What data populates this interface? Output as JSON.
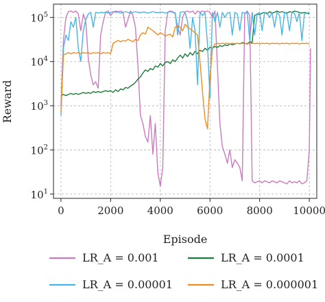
{
  "chart_data": {
    "type": "line",
    "xlabel": "Episode",
    "ylabel": "Reward",
    "yscale": "log",
    "xlim": [
      -300,
      10300
    ],
    "ylim": [
      8,
      200000
    ],
    "grid": true,
    "legend_position": "bottom",
    "x_ticks": [
      0,
      2000,
      4000,
      6000,
      8000,
      10000
    ],
    "x_tick_labels": [
      "0",
      "2000",
      "4000",
      "6000",
      "8000",
      "10000"
    ],
    "y_ticks": [
      10,
      100,
      1000,
      10000,
      100000
    ],
    "y_tick_labels": [
      {
        "base": "10",
        "exp": "1"
      },
      {
        "base": "10",
        "exp": "2"
      },
      {
        "base": "10",
        "exp": "3"
      },
      {
        "base": "10",
        "exp": "4"
      },
      {
        "base": "10",
        "exp": "5"
      }
    ],
    "series": [
      {
        "name": "LR_A = 0.001",
        "color": "#cc79c0",
        "x": [
          0,
          100,
          200,
          300,
          400,
          500,
          600,
          700,
          800,
          900,
          1000,
          1100,
          1200,
          1300,
          1400,
          1500,
          1600,
          1700,
          1800,
          1900,
          2000,
          2100,
          2200,
          2300,
          2400,
          2500,
          2600,
          2700,
          2800,
          2900,
          3000,
          3100,
          3200,
          3300,
          3400,
          3500,
          3600,
          3700,
          3800,
          3900,
          4000,
          4100,
          4200,
          4300,
          4400,
          4500,
          4600,
          4700,
          4800,
          4900,
          5000,
          5100,
          5200,
          5300,
          5400,
          5500,
          5600,
          5700,
          5800,
          5900,
          6000,
          6100,
          6200,
          6300,
          6400,
          6500,
          6600,
          6700,
          6800,
          6900,
          7000,
          7100,
          7200,
          7300,
          7400,
          7500,
          7600,
          7700,
          7800,
          7900,
          8000,
          8100,
          8200,
          8300,
          8400,
          8500,
          8600,
          8700,
          8800,
          8900,
          9000,
          9100,
          9200,
          9300,
          9400,
          9500,
          9600,
          9700,
          9800,
          9900,
          10000
        ],
        "values": [
          1000,
          30000,
          100000,
          135000,
          140000,
          130000,
          140000,
          120000,
          50000,
          120000,
          80000,
          12000,
          5000,
          3000,
          3500,
          2500,
          40000,
          80000,
          130000,
          140000,
          110000,
          130000,
          140000,
          135000,
          140000,
          130000,
          60000,
          90000,
          140000,
          110000,
          60000,
          8000,
          600,
          400,
          200,
          150,
          600,
          80,
          400,
          30,
          15,
          40,
          50000,
          130000,
          140000,
          135000,
          120000,
          60000,
          40000,
          100000,
          135000,
          140000,
          130000,
          140000,
          120000,
          140000,
          130000,
          140000,
          135000,
          140000,
          130000,
          100000,
          140000,
          8000,
          400,
          120,
          80,
          50,
          100,
          40,
          60,
          50,
          40,
          20,
          120000,
          140000,
          110000,
          20,
          18,
          19,
          20,
          18,
          20,
          19,
          18,
          20,
          19,
          18,
          20,
          19,
          18,
          17,
          20,
          18,
          19,
          18,
          20,
          17,
          18,
          20,
          100
        ],
        "end": [
          10050,
          20000
        ]
      },
      {
        "name": "LR_A = 0.0001",
        "color": "#1a7a38",
        "x": [
          0,
          100,
          200,
          300,
          400,
          500,
          600,
          700,
          800,
          900,
          1000,
          1100,
          1200,
          1300,
          1400,
          1500,
          1600,
          1700,
          1800,
          1900,
          2000,
          2100,
          2200,
          2300,
          2400,
          2500,
          2600,
          2700,
          2800,
          2900,
          3000,
          3100,
          3200,
          3300,
          3400,
          3500,
          3600,
          3700,
          3800,
          3900,
          4000,
          4100,
          4200,
          4300,
          4400,
          4500,
          4600,
          4700,
          4800,
          4900,
          5000,
          5100,
          5200,
          5300,
          5400,
          5500,
          5600,
          5700,
          5800,
          5900,
          6000,
          6100,
          6200,
          6300,
          6400,
          6500,
          6600,
          6700,
          6800,
          6900,
          7000,
          7100,
          7200,
          7300,
          7400,
          7500,
          7600,
          7700,
          7800,
          7900,
          8000,
          8100,
          8200,
          8300,
          8400,
          8500,
          8600,
          8700,
          8800,
          8900,
          9000,
          9100,
          9200,
          9300,
          9400,
          9500,
          9600,
          9700,
          9800,
          9900,
          10000
        ],
        "values": [
          1700,
          1800,
          1700,
          1800,
          1900,
          1800,
          1900,
          1800,
          1900,
          2000,
          1900,
          2000,
          1900,
          2100,
          2000,
          2100,
          2000,
          2100,
          2200,
          2100,
          2200,
          2000,
          2300,
          2100,
          2400,
          2300,
          2600,
          2500,
          2800,
          3000,
          3400,
          4000,
          4500,
          5500,
          6500,
          6000,
          7000,
          6500,
          8000,
          7500,
          9000,
          8000,
          9500,
          10000,
          9000,
          11000,
          10000,
          12000,
          14000,
          12000,
          15000,
          13000,
          16000,
          14000,
          17000,
          15000,
          18000,
          17000,
          20000,
          18000,
          21000,
          20000,
          22000,
          21000,
          23000,
          22000,
          24000,
          23000,
          25000,
          24000,
          25000,
          26000,
          25000,
          27000,
          26000,
          25000,
          28000,
          27000,
          110000,
          120000,
          115000,
          125000,
          130000,
          120000,
          135000,
          125000,
          130000,
          140000,
          130000,
          135000,
          130000,
          125000,
          135000,
          130000,
          140000,
          135000,
          130000,
          125000,
          130000,
          125000,
          120000
        ]
      },
      {
        "name": "LR_A = 0.00001",
        "color": "#43b5e8",
        "x": [
          0,
          100,
          200,
          300,
          400,
          500,
          600,
          700,
          800,
          900,
          1000,
          1100,
          1200,
          1300,
          1400,
          1500,
          1600,
          1700,
          1800,
          1900,
          2000,
          2100,
          2200,
          2300,
          2400,
          2500,
          2600,
          2700,
          2800,
          2900,
          3000,
          3100,
          3200,
          3300,
          3400,
          3500,
          3600,
          3700,
          3800,
          3900,
          4000,
          4100,
          4200,
          4300,
          4400,
          4500,
          4600,
          4700,
          4800,
          4900,
          5000,
          5100,
          5200,
          5300,
          5400,
          5500,
          5600,
          5700,
          5800,
          5900,
          6000,
          6100,
          6200,
          6300,
          6400,
          6500,
          6600,
          6700,
          6800,
          6900,
          7000,
          7100,
          7200,
          7300,
          7400,
          7500,
          7600,
          7700,
          7800,
          7900,
          8000,
          8100,
          8200,
          8300,
          8400,
          8500,
          8600,
          8700,
          8800,
          8900,
          9000,
          9100,
          9200,
          9300,
          9400,
          9500,
          9600,
          9700,
          9800,
          9900,
          10000
        ],
        "values": [
          600,
          20000,
          40000,
          30000,
          80000,
          60000,
          100000,
          20000,
          10000,
          50000,
          90000,
          120000,
          130000,
          60000,
          130000,
          125000,
          130000,
          128000,
          130000,
          125000,
          130000,
          135000,
          130000,
          132000,
          125000,
          130000,
          135000,
          130000,
          125000,
          130000,
          135000,
          130000,
          128000,
          132000,
          130000,
          125000,
          130000,
          135000,
          130000,
          128000,
          132000,
          130000,
          125000,
          130000,
          135000,
          130000,
          128000,
          40000,
          130000,
          135000,
          130000,
          80000,
          20000,
          100000,
          50000,
          3000,
          130000,
          110000,
          130000,
          25000,
          1500,
          130000,
          80000,
          130000,
          60000,
          130000,
          100000,
          125000,
          130000,
          40000,
          130000,
          120000,
          50000,
          130000,
          125000,
          128000,
          30000,
          130000,
          40000,
          120000,
          130000,
          50000,
          130000,
          125000,
          100000,
          130000,
          60000,
          130000,
          110000,
          40000,
          130000,
          120000,
          50000,
          130000,
          125000,
          80000,
          130000,
          30000,
          120000,
          125000,
          130000
        ]
      },
      {
        "name": "LR_A = 0.000001",
        "color": "#f08c1e",
        "x": [
          0,
          100,
          200,
          300,
          400,
          500,
          600,
          700,
          800,
          900,
          1000,
          1100,
          1200,
          1300,
          1400,
          1500,
          1600,
          1700,
          1800,
          1900,
          2000,
          2100,
          2200,
          2300,
          2400,
          2500,
          2600,
          2700,
          2800,
          2900,
          3000,
          3100,
          3200,
          3300,
          3400,
          3500,
          3600,
          3700,
          3800,
          3900,
          4000,
          4100,
          4200,
          4300,
          4400,
          4500,
          4600,
          4700,
          4800,
          4900,
          5000,
          5100,
          5200,
          5300,
          5400,
          5500,
          5600,
          5700,
          5800,
          5900,
          6000,
          6100,
          6200,
          6300,
          6400,
          6500,
          6600,
          6700,
          6800,
          6900,
          7000,
          7100,
          7200,
          7300,
          7400,
          7500,
          7600,
          7700,
          7800,
          7900,
          8000,
          8100,
          8200,
          8300,
          8400,
          8500,
          8600,
          8700,
          8800,
          8900,
          9000,
          9100,
          9200,
          9300,
          9400,
          9500,
          9600,
          9700,
          9800,
          9900,
          10000
        ],
        "values": [
          700,
          14000,
          15000,
          16000,
          15000,
          16000,
          15500,
          16000,
          15000,
          16000,
          15500,
          16000,
          15000,
          16000,
          15500,
          16000,
          15000,
          16000,
          15500,
          16000,
          15000,
          26000,
          28000,
          30000,
          28000,
          30000,
          29000,
          32000,
          30000,
          28000,
          32000,
          30000,
          40000,
          45000,
          42000,
          60000,
          55000,
          50000,
          45000,
          40000,
          45000,
          42000,
          38000,
          40000,
          42000,
          36000,
          60000,
          65000,
          60000,
          50000,
          70000,
          60000,
          55000,
          50000,
          45000,
          40000,
          10000,
          2000,
          500,
          300,
          4000,
          20000,
          25000,
          26000,
          25000,
          26000,
          25500,
          26000,
          25000,
          26000,
          25500,
          26000,
          25000,
          26000,
          25500,
          26000,
          25000,
          26000,
          25500,
          26000,
          25000,
          26000,
          25500,
          26000,
          25000,
          26000,
          25500,
          26000,
          25000,
          26000,
          25500,
          26000,
          25000,
          26000,
          25500,
          26000,
          25000,
          26000,
          25500,
          26000,
          25000
        ]
      }
    ]
  }
}
